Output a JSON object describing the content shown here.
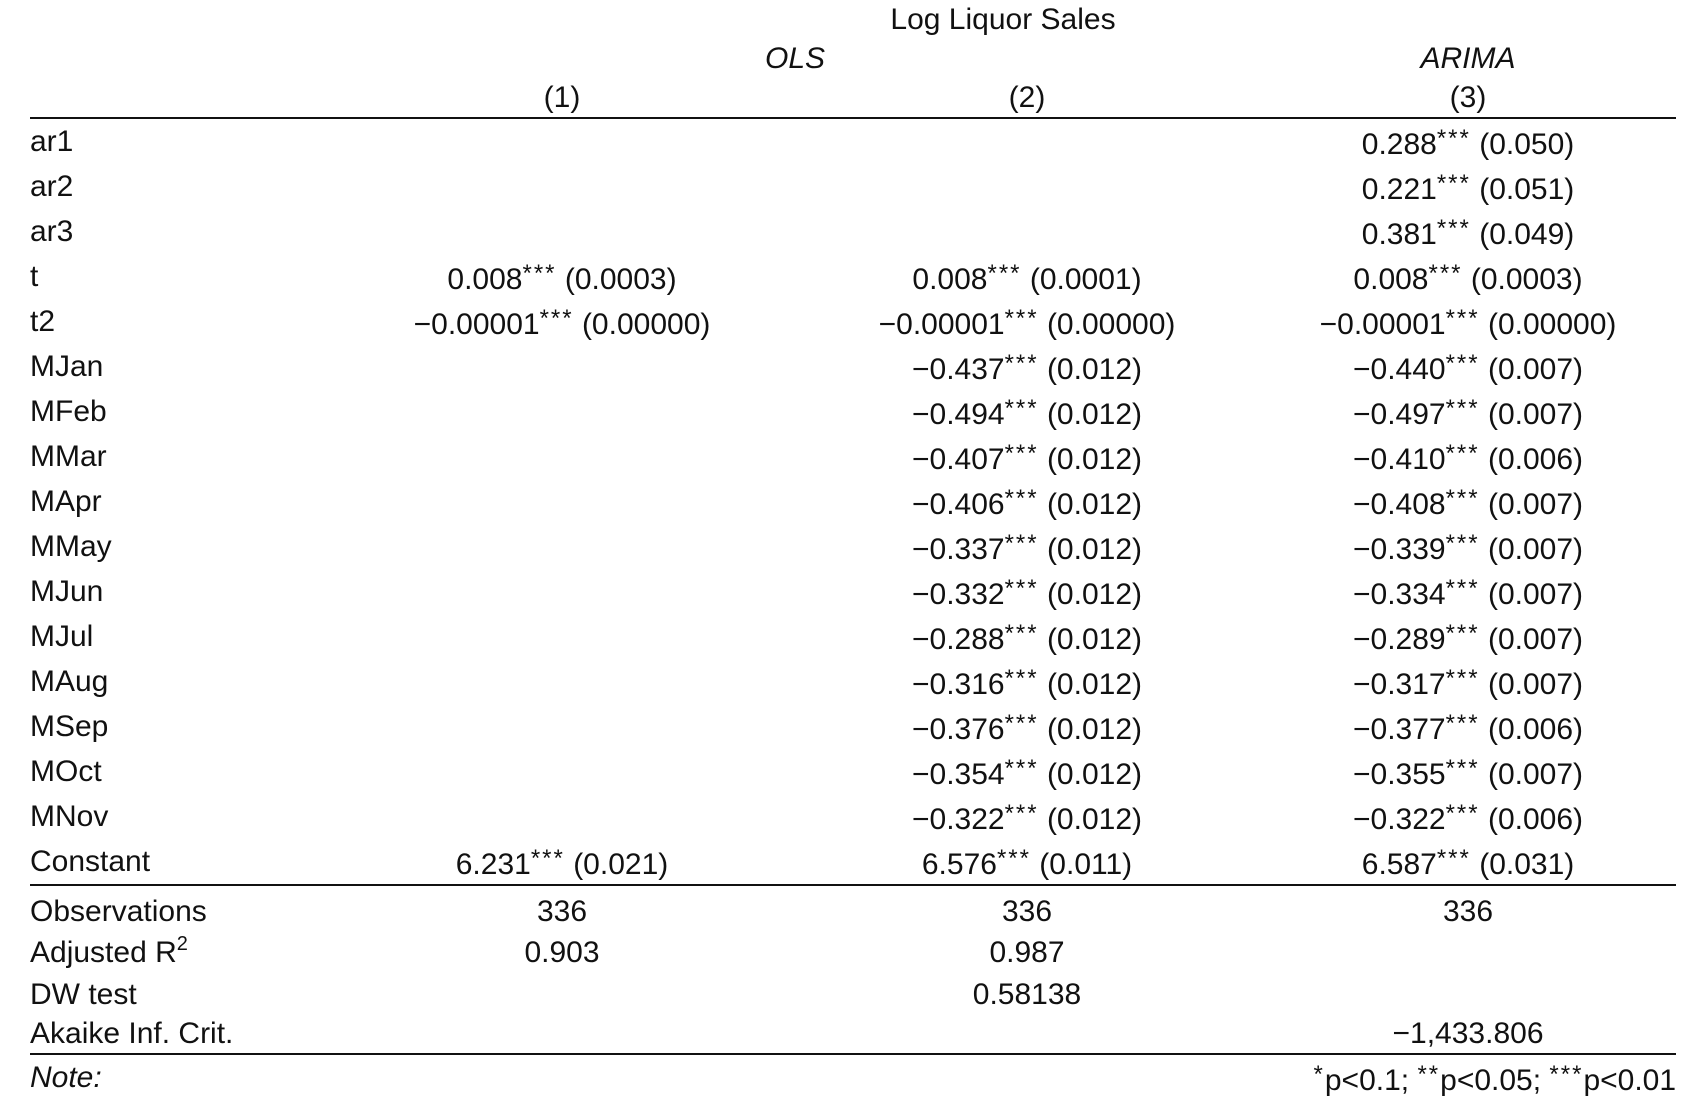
{
  "title": "Log Liquor Sales",
  "groups": {
    "ols": "OLS",
    "arima": "ARIMA"
  },
  "columns": [
    "(1)",
    "(2)",
    "(3)"
  ],
  "rows": [
    {
      "label": "ar1",
      "c1": "",
      "c2": "",
      "c3": "0.288*** (0.050)"
    },
    {
      "label": "ar2",
      "c1": "",
      "c2": "",
      "c3": "0.221*** (0.051)"
    },
    {
      "label": "ar3",
      "c1": "",
      "c2": "",
      "c3": "0.381*** (0.049)"
    },
    {
      "label": "t",
      "c1": "0.008*** (0.0003)",
      "c2": "0.008*** (0.0001)",
      "c3": "0.008*** (0.0003)"
    },
    {
      "label": "t2",
      "c1": "−0.00001*** (0.00000)",
      "c2": "−0.00001*** (0.00000)",
      "c3": "−0.00001*** (0.00000)"
    },
    {
      "label": "MJan",
      "c1": "",
      "c2": "−0.437*** (0.012)",
      "c3": "−0.440*** (0.007)"
    },
    {
      "label": "MFeb",
      "c1": "",
      "c2": "−0.494*** (0.012)",
      "c3": "−0.497*** (0.007)"
    },
    {
      "label": "MMar",
      "c1": "",
      "c2": "−0.407*** (0.012)",
      "c3": "−0.410*** (0.006)"
    },
    {
      "label": "MApr",
      "c1": "",
      "c2": "−0.406*** (0.012)",
      "c3": "−0.408*** (0.007)"
    },
    {
      "label": "MMay",
      "c1": "",
      "c2": "−0.337*** (0.012)",
      "c3": "−0.339*** (0.007)"
    },
    {
      "label": "MJun",
      "c1": "",
      "c2": "−0.332*** (0.012)",
      "c3": "−0.334*** (0.007)"
    },
    {
      "label": "MJul",
      "c1": "",
      "c2": "−0.288*** (0.012)",
      "c3": "−0.289*** (0.007)"
    },
    {
      "label": "MAug",
      "c1": "",
      "c2": "−0.316*** (0.012)",
      "c3": "−0.317*** (0.007)"
    },
    {
      "label": "MSep",
      "c1": "",
      "c2": "−0.376*** (0.012)",
      "c3": "−0.377*** (0.006)"
    },
    {
      "label": "MOct",
      "c1": "",
      "c2": "−0.354*** (0.012)",
      "c3": "−0.355*** (0.007)"
    },
    {
      "label": "MNov",
      "c1": "",
      "c2": "−0.322*** (0.012)",
      "c3": "−0.322*** (0.006)"
    },
    {
      "label": "Constant",
      "c1": "6.231*** (0.021)",
      "c2": "6.576*** (0.011)",
      "c3": "6.587*** (0.031)"
    }
  ],
  "stats": {
    "observations": {
      "label": "Observations",
      "c1": "336",
      "c2": "336",
      "c3": "336"
    },
    "adj_r2": {
      "label": "Adjusted R",
      "sup": "2",
      "c1": "0.903",
      "c2": "0.987",
      "c3": ""
    },
    "dw": {
      "label": "DW test",
      "c1": "",
      "c2": "0.58138",
      "c3": ""
    },
    "aic": {
      "label": "Akaike Inf. Crit.",
      "c1": "",
      "c2": "",
      "c3": "−1,433.806"
    }
  },
  "note": {
    "label": "Note:",
    "text": "*p<0.1; **p<0.05; ***p<0.01"
  }
}
